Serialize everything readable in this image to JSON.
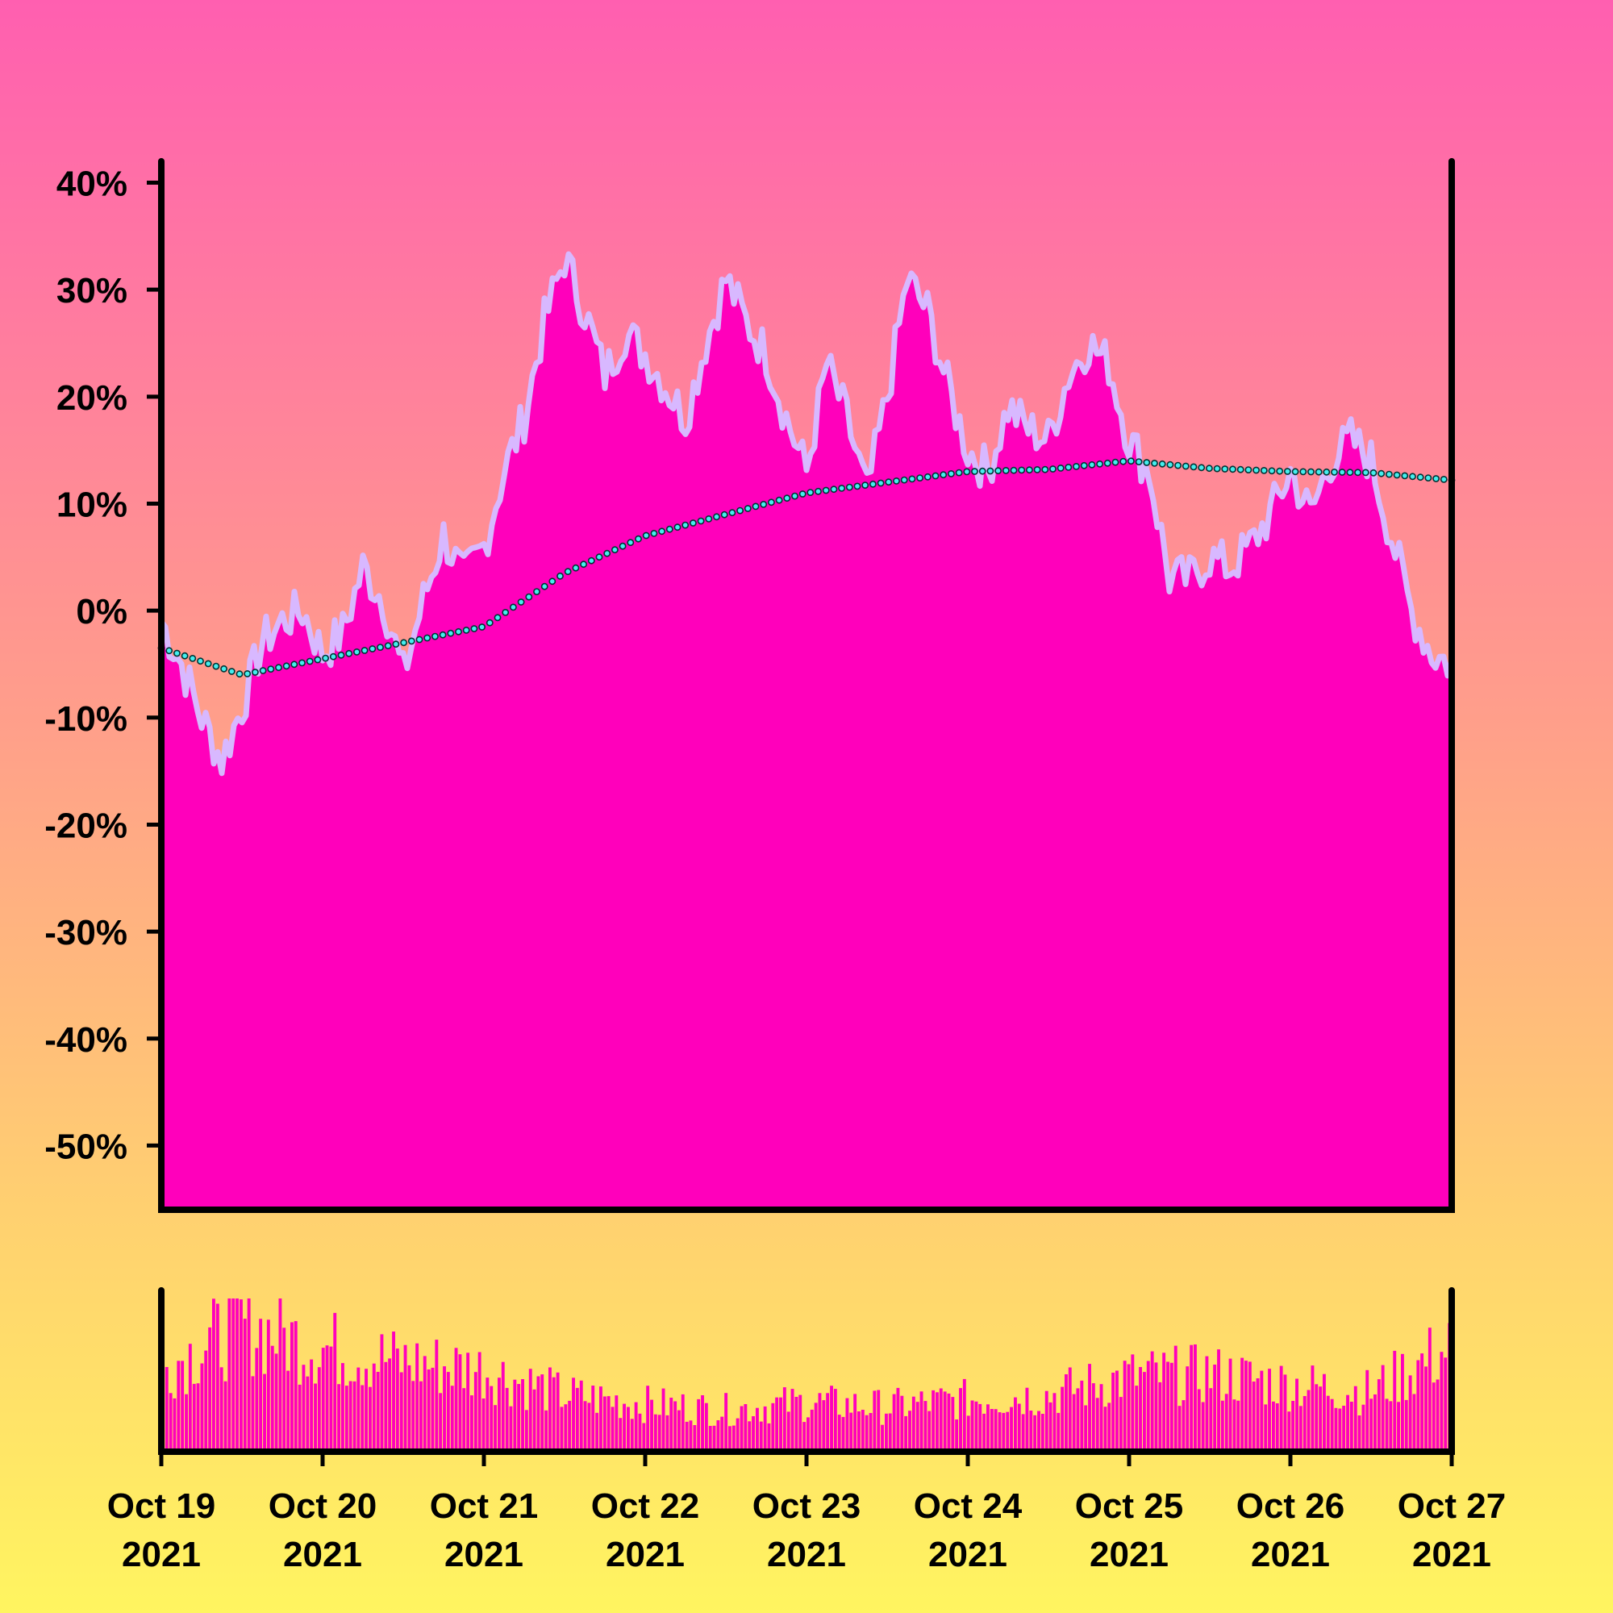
{
  "chart_data": [
    {
      "type": "area",
      "title": "",
      "xlabel": "",
      "ylabel": "",
      "ylim": [
        -56,
        42
      ],
      "xlim": [
        "2021-10-19",
        "2021-10-27"
      ],
      "yticks": [
        "40%",
        "30%",
        "20%",
        "10%",
        "0%",
        "-10%",
        "-20%",
        "-30%",
        "-40%",
        "-50%"
      ],
      "grid": false,
      "legend": "none",
      "colors": {
        "fill": "#ff00bb",
        "line": "#d8b8ff",
        "ma_stroke": "#003333",
        "ma_fill": "#44eeee"
      },
      "series": [
        {
          "x": [
            "2021-10-19T00:00",
            "2021-10-19T03:00",
            "2021-10-19T06:00",
            "2021-10-19T09:00",
            "2021-10-19T12:00",
            "2021-10-19T15:00",
            "2021-10-19T18:00",
            "2021-10-19T21:00",
            "2021-10-20T00:00",
            "2021-10-20T03:00",
            "2021-10-20T06:00",
            "2021-10-20T09:00",
            "2021-10-20T12:00",
            "2021-10-20T15:00",
            "2021-10-20T18:00",
            "2021-10-20T21:00",
            "2021-10-21T00:00",
            "2021-10-21T03:00",
            "2021-10-21T06:00",
            "2021-10-21T09:00",
            "2021-10-21T12:00",
            "2021-10-21T15:00",
            "2021-10-21T18:00",
            "2021-10-21T21:00",
            "2021-10-22T00:00",
            "2021-10-22T03:00",
            "2021-10-22T06:00",
            "2021-10-22T09:00",
            "2021-10-22T12:00",
            "2021-10-22T15:00",
            "2021-10-22T18:00",
            "2021-10-22T21:00",
            "2021-10-23T00:00",
            "2021-10-23T03:00",
            "2021-10-23T06:00",
            "2021-10-23T09:00",
            "2021-10-23T12:00",
            "2021-10-23T15:00",
            "2021-10-23T18:00",
            "2021-10-23T21:00",
            "2021-10-24T00:00",
            "2021-10-24T03:00",
            "2021-10-24T06:00",
            "2021-10-24T09:00",
            "2021-10-24T12:00",
            "2021-10-24T15:00",
            "2021-10-24T18:00",
            "2021-10-24T21:00",
            "2021-10-25T00:00",
            "2021-10-25T03:00",
            "2021-10-25T06:00",
            "2021-10-25T09:00",
            "2021-10-25T12:00",
            "2021-10-25T15:00",
            "2021-10-25T18:00",
            "2021-10-25T21:00",
            "2021-10-26T00:00",
            "2021-10-26T03:00",
            "2021-10-26T06:00",
            "2021-10-26T09:00",
            "2021-10-26T12:00",
            "2021-10-26T15:00",
            "2021-10-26T18:00",
            "2021-10-26T21:00",
            "2021-10-27T00:00"
          ],
          "values": [
            -1,
            -5,
            -10,
            -14,
            -9,
            -3,
            -1,
            0,
            -4,
            -2,
            4,
            1,
            -6,
            1,
            7,
            3,
            6,
            13,
            18,
            27,
            33,
            28,
            22,
            26,
            24,
            21,
            18,
            25,
            31,
            27,
            24,
            18,
            13,
            23,
            18,
            11,
            20,
            31,
            28,
            21,
            15,
            13,
            19,
            17,
            16,
            22,
            25,
            23,
            16,
            13,
            3,
            3,
            5,
            4,
            6,
            9,
            13,
            9,
            14,
            16,
            14,
            7,
            0,
            -4,
            -5
          ]
        },
        {
          "x": [
            "2021-10-19T00:00",
            "2021-10-19T12:00",
            "2021-10-20T00:00",
            "2021-10-20T12:00",
            "2021-10-21T00:00",
            "2021-10-21T12:00",
            "2021-10-22T00:00",
            "2021-10-22T12:00",
            "2021-10-23T00:00",
            "2021-10-23T12:00",
            "2021-10-24T00:00",
            "2021-10-24T12:00",
            "2021-10-25T00:00",
            "2021-10-25T12:00",
            "2021-10-26T00:00",
            "2021-10-26T12:00",
            "2021-10-27T00:00"
          ],
          "values": [
            -3.5,
            -6,
            -4.5,
            -3,
            -1.5,
            3.5,
            7,
            9,
            11,
            12,
            13,
            13.2,
            14,
            13.3,
            13,
            12.9,
            12.2
          ]
        }
      ]
    },
    {
      "type": "bar",
      "title": "",
      "xlabel": "",
      "ylabel": "",
      "xticks": [
        {
          "line1": "Oct 19",
          "line2": "2021"
        },
        {
          "line1": "Oct 20",
          "line2": "2021"
        },
        {
          "line1": "Oct 21",
          "line2": "2021"
        },
        {
          "line1": "Oct 22",
          "line2": "2021"
        },
        {
          "line1": "Oct 23",
          "line2": "2021"
        },
        {
          "line1": "Oct 24",
          "line2": "2021"
        },
        {
          "line1": "Oct 25",
          "line2": "2021"
        },
        {
          "line1": "Oct 26",
          "line2": "2021"
        },
        {
          "line1": "Oct 27",
          "line2": "2021"
        }
      ],
      "colors": {
        "bar": "#ff00bb"
      },
      "envelope": {
        "x": [
          "2021-10-19",
          "2021-10-19T12:00",
          "2021-10-20",
          "2021-10-20T12:00",
          "2021-10-21",
          "2021-10-21T12:00",
          "2021-10-22",
          "2021-10-22T12:00",
          "2021-10-23",
          "2021-10-23T12:00",
          "2021-10-24",
          "2021-10-24T12:00",
          "2021-10-25",
          "2021-10-25T12:00",
          "2021-10-26",
          "2021-10-26T12:00",
          "2021-10-27"
        ],
        "values": [
          0.55,
          0.85,
          0.7,
          0.6,
          0.55,
          0.38,
          0.32,
          0.28,
          0.33,
          0.3,
          0.35,
          0.38,
          0.5,
          0.52,
          0.45,
          0.4,
          0.7
        ]
      }
    }
  ]
}
